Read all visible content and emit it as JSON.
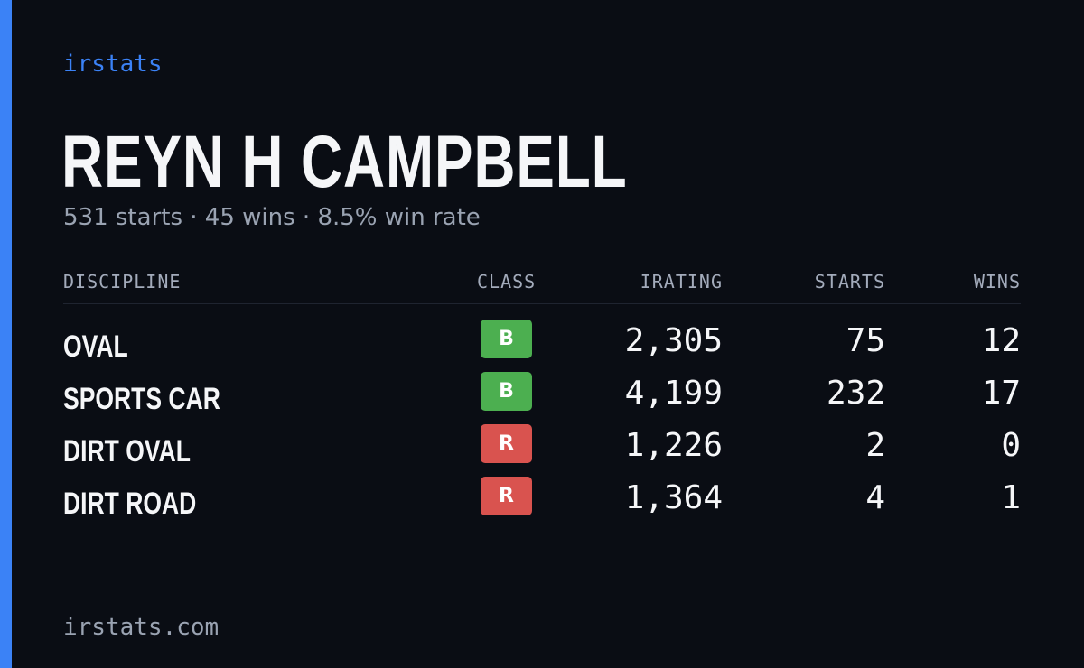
{
  "brand": "irstats",
  "player": {
    "name": "REYN H CAMPBELL",
    "summary": "531 starts · 45 wins · 8.5% win rate"
  },
  "table": {
    "headers": {
      "discipline": "DISCIPLINE",
      "class": "CLASS",
      "irating": "IRATING",
      "starts": "STARTS",
      "wins": "WINS"
    },
    "rows": [
      {
        "discipline": "OVAL",
        "class": "B",
        "class_color": "#4caf50",
        "irating": "2,305",
        "starts": "75",
        "wins": "12"
      },
      {
        "discipline": "SPORTS CAR",
        "class": "B",
        "class_color": "#4caf50",
        "irating": "4,199",
        "starts": "232",
        "wins": "17"
      },
      {
        "discipline": "DIRT OVAL",
        "class": "R",
        "class_color": "#d9534f",
        "irating": "1,226",
        "starts": "2",
        "wins": "0"
      },
      {
        "discipline": "DIRT ROAD",
        "class": "R",
        "class_color": "#d9534f",
        "irating": "1,364",
        "starts": "4",
        "wins": "1"
      }
    ]
  },
  "footer": "irstats.com",
  "colors": {
    "accent": "#3b82f6",
    "background": "#0a0d14"
  }
}
